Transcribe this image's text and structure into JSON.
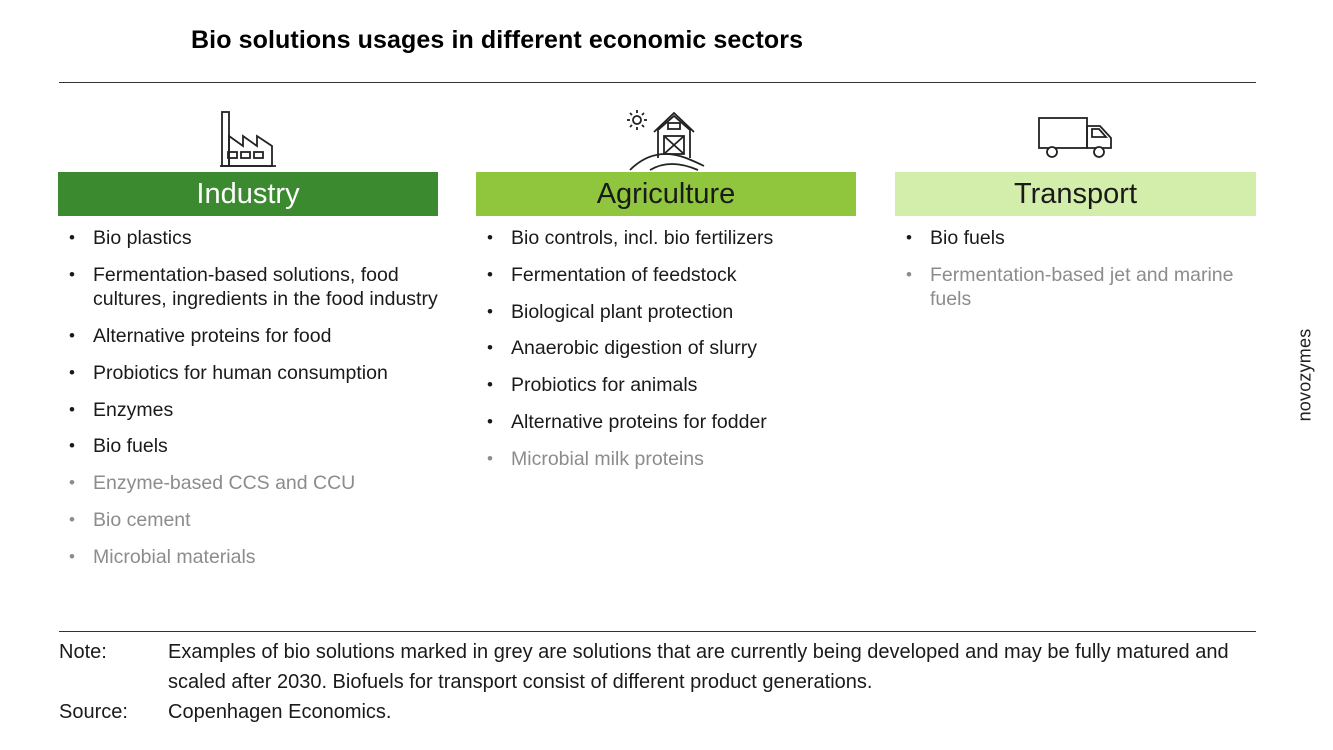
{
  "title": "Bio solutions usages in different economic sectors",
  "columns": [
    {
      "header": "Industry",
      "icon": "factory-icon",
      "items": [
        {
          "text": "Bio plastics",
          "grey": false
        },
        {
          "text": "Fermentation-based solutions, food cultures, ingredients in the food industry",
          "grey": false
        },
        {
          "text": "Alternative proteins for food",
          "grey": false
        },
        {
          "text": "Probiotics for human consumption",
          "grey": false
        },
        {
          "text": "Enzymes",
          "grey": false
        },
        {
          "text": "Bio fuels",
          "grey": false
        },
        {
          "text": "Enzyme-based CCS and CCU",
          "grey": true
        },
        {
          "text": "Bio cement",
          "grey": true
        },
        {
          "text": "Microbial materials",
          "grey": true
        }
      ]
    },
    {
      "header": "Agriculture",
      "icon": "farm-barn-icon",
      "items": [
        {
          "text": "Bio controls, incl. bio fertilizers",
          "grey": false
        },
        {
          "text": "Fermentation of feedstock",
          "grey": false
        },
        {
          "text": "Biological plant protection",
          "grey": false
        },
        {
          "text": "Anaerobic digestion of slurry",
          "grey": false
        },
        {
          "text": "Probiotics for animals",
          "grey": false
        },
        {
          "text": "Alternative proteins for fodder",
          "grey": false
        },
        {
          "text": "Microbial milk proteins",
          "grey": true
        }
      ]
    },
    {
      "header": "Transport",
      "icon": "truck-icon",
      "items": [
        {
          "text": "Bio fuels",
          "grey": false
        },
        {
          "text": "Fermentation-based jet and marine fuels",
          "grey": true
        }
      ]
    }
  ],
  "colors": {
    "industry": "#3b8a2f",
    "agriculture": "#8fc63d",
    "transport": "#d3edaa",
    "grey_text": "#8c8c8c"
  },
  "note": {
    "label": "Note:",
    "text": "Examples of bio solutions marked in grey are solutions that are currently being developed and may be fully matured and scaled after 2030. Biofuels for transport consist of different product generations."
  },
  "source": {
    "label": "Source:",
    "text": "Copenhagen Economics."
  },
  "brand": "novozymes"
}
